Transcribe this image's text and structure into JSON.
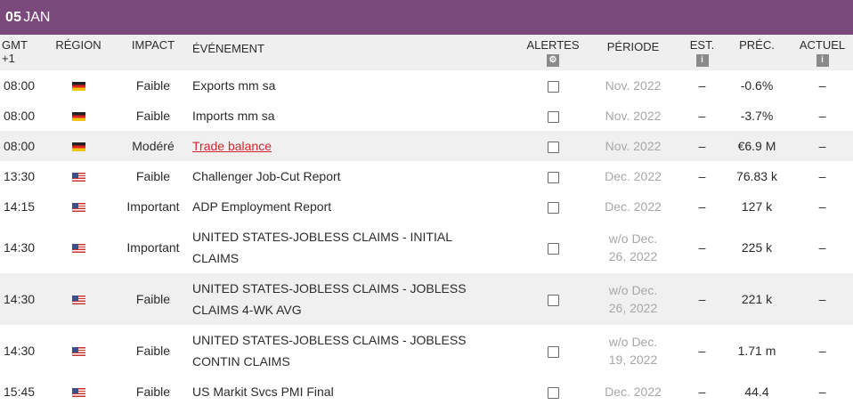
{
  "date_header": {
    "day": "05",
    "month": "JAN"
  },
  "headers": {
    "time": "GMT +1",
    "region": "RÉGION",
    "impact": "IMPACT",
    "event": "ÉVÉNEMENT",
    "alerts": "ALERTES",
    "period": "PÉRIODE",
    "est": "EST.",
    "prec": "PRÉC.",
    "actual": "ACTUEL"
  },
  "rows": [
    {
      "time": "08:00",
      "region": "germany-flag",
      "impact": "Faible",
      "event_line1": "Exports mm sa",
      "event_line2": "",
      "period_line1": "Nov. 2022",
      "period_line2": "",
      "est": "–",
      "prec": "-0.6%",
      "actual": "–"
    },
    {
      "time": "08:00",
      "region": "germany-flag",
      "impact": "Faible",
      "event_line1": "Imports mm sa",
      "event_line2": "",
      "period_line1": "Nov. 2022",
      "period_line2": "",
      "est": "–",
      "prec": "-3.7%",
      "actual": "–"
    },
    {
      "time": "08:00",
      "region": "germany-flag",
      "impact": "Modéré",
      "event_line1": "Trade balance",
      "event_line2": "",
      "period_line1": "Nov. 2022",
      "period_line2": "",
      "est": "–",
      "prec": "€6.9 M",
      "actual": "–"
    },
    {
      "time": "13:30",
      "region": "usa-flag",
      "impact": "Faible",
      "event_line1": "Challenger Job-Cut Report",
      "event_line2": "",
      "period_line1": "Dec. 2022",
      "period_line2": "",
      "est": "–",
      "prec": "76.83 k",
      "actual": "–"
    },
    {
      "time": "14:15",
      "region": "usa-flag",
      "impact": "Important",
      "event_line1": "ADP Employment Report",
      "event_line2": "",
      "period_line1": "Dec. 2022",
      "period_line2": "",
      "est": "–",
      "prec": "127 k",
      "actual": "–"
    },
    {
      "time": "14:30",
      "region": "usa-flag",
      "impact": "Important",
      "event_line1": "UNITED STATES-JOBLESS CLAIMS - INITIAL",
      "event_line2": "CLAIMS",
      "period_line1": "w/o Dec.",
      "period_line2": "26, 2022",
      "est": "–",
      "prec": "225 k",
      "actual": "–"
    },
    {
      "time": "14:30",
      "region": "usa-flag",
      "impact": "Faible",
      "event_line1": "UNITED STATES-JOBLESS CLAIMS - JOBLESS",
      "event_line2": "CLAIMS 4-WK AVG",
      "period_line1": "w/o Dec.",
      "period_line2": "26, 2022",
      "est": "–",
      "prec": "221 k",
      "actual": "–"
    },
    {
      "time": "14:30",
      "region": "usa-flag",
      "impact": "Faible",
      "event_line1": "UNITED STATES-JOBLESS CLAIMS - JOBLESS",
      "event_line2": "CONTIN CLAIMS",
      "period_line1": "w/o Dec.",
      "period_line2": "19, 2022",
      "est": "–",
      "prec": "1.71 m",
      "actual": "–"
    },
    {
      "time": "15:45",
      "region": "usa-flag",
      "impact": "Faible",
      "event_line1": "US Markit Svcs PMI Final",
      "event_line2": "",
      "period_line1": "Dec. 2022",
      "period_line2": "",
      "est": "–",
      "prec": "44.4",
      "actual": "–"
    }
  ]
}
